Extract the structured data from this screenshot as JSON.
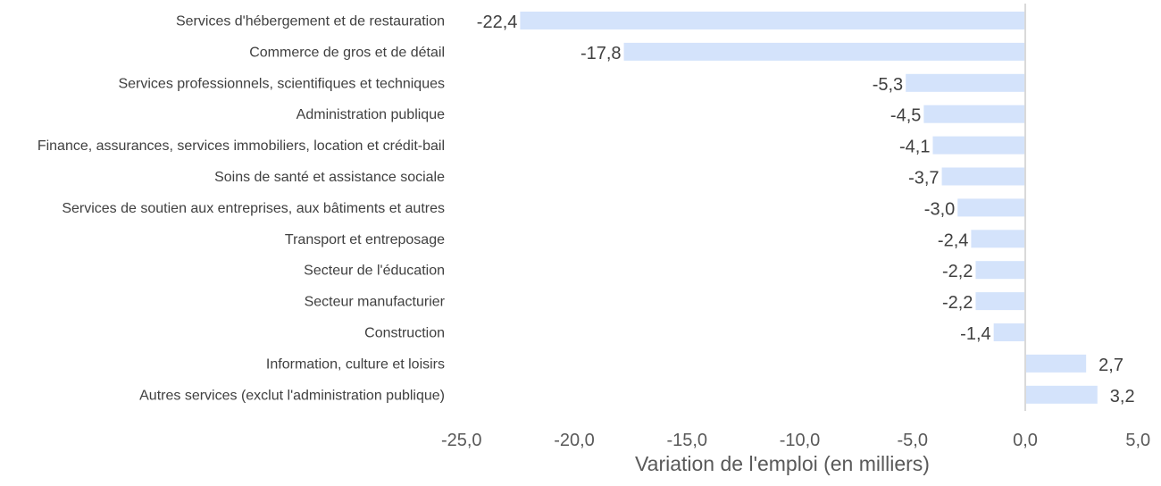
{
  "chart_data": {
    "type": "bar",
    "orientation": "horizontal",
    "categories": [
      "Services d'hébergement et de restauration",
      "Commerce de gros et de détail",
      "Services professionnels, scientifiques et techniques",
      "Administration publique",
      "Finance, assurances, services immobiliers, location et crédit-bail",
      "Soins de santé et assistance sociale",
      "Services de soutien aux entreprises, aux bâtiments et autres",
      "Transport et entreposage",
      "Secteur de l'éducation",
      "Secteur manufacturier",
      "Construction",
      "Information, culture et loisirs",
      "Autres services (exclut l'administration publique)"
    ],
    "values": [
      -22.4,
      -17.8,
      -5.3,
      -4.5,
      -4.1,
      -3.7,
      -3.0,
      -2.4,
      -2.2,
      -2.2,
      -1.4,
      2.7,
      3.2
    ],
    "value_labels": [
      "-22,4",
      "-17,8",
      "-5,3",
      "-4,5",
      "-4,1",
      "-3,7",
      "-3,0",
      "-2,4",
      "-2,2",
      "-2,2",
      "-1,4",
      "2,7",
      "3,2"
    ],
    "xlim": [
      -25,
      5
    ],
    "xticks": [
      -25,
      -20,
      -15,
      -10,
      -5,
      0,
      5
    ],
    "xtick_labels": [
      "-25,0",
      "-20,0",
      "-15,0",
      "-10,0",
      "-5,0",
      "0,0",
      "5,0"
    ],
    "xlabel": "Variation de l'emploi (en milliers)",
    "ylabel": "",
    "title": "",
    "grid": false,
    "legend": "none",
    "bar_color": "#d4e3fb",
    "zero_line_color": "#d9d9d9"
  }
}
